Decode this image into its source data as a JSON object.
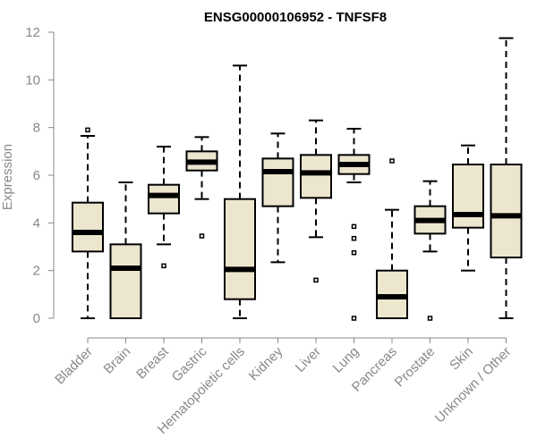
{
  "chart_data": {
    "type": "boxplot",
    "title": "ENSG00000106952 - TNFSF8",
    "xlabel": "",
    "ylabel": "Expression",
    "ylim": [
      0,
      12
    ],
    "yticks": [
      0,
      2,
      4,
      6,
      8,
      10,
      12
    ],
    "colors": {
      "box_fill": "#ede6cf",
      "stroke": "#000000",
      "axis": "#888888"
    },
    "categories": [
      "Bladder",
      "Brain",
      "Breast",
      "Gastric",
      "Hematopoietic cells",
      "Kidney",
      "Liver",
      "Lung",
      "Pancreas",
      "Prostate",
      "Skin",
      "Unknown / Other"
    ],
    "boxes": [
      {
        "category": "Bladder",
        "whisker_low": 0.0,
        "q1": 2.8,
        "median": 3.6,
        "q3": 4.85,
        "whisker_high": 7.65,
        "outliers": [
          7.9
        ]
      },
      {
        "category": "Brain",
        "whisker_low": 0.0,
        "q1": 0.0,
        "median": 2.1,
        "q3": 3.1,
        "whisker_high": 5.7,
        "outliers": []
      },
      {
        "category": "Breast",
        "whisker_low": 3.1,
        "q1": 4.4,
        "median": 5.15,
        "q3": 5.6,
        "whisker_high": 7.2,
        "outliers": [
          2.2
        ]
      },
      {
        "category": "Gastric",
        "whisker_low": 5.0,
        "q1": 6.2,
        "median": 6.55,
        "q3": 7.0,
        "whisker_high": 7.6,
        "outliers": [
          3.45
        ]
      },
      {
        "category": "Hematopoietic cells",
        "whisker_low": 0.0,
        "q1": 0.8,
        "median": 2.05,
        "q3": 5.0,
        "whisker_high": 10.6,
        "outliers": []
      },
      {
        "category": "Kidney",
        "whisker_low": 2.35,
        "q1": 4.7,
        "median": 6.15,
        "q3": 6.7,
        "whisker_high": 7.75,
        "outliers": []
      },
      {
        "category": "Liver",
        "whisker_low": 3.4,
        "q1": 5.05,
        "median": 6.1,
        "q3": 6.85,
        "whisker_high": 8.3,
        "outliers": [
          1.6
        ]
      },
      {
        "category": "Lung",
        "whisker_low": 5.7,
        "q1": 6.05,
        "median": 6.45,
        "q3": 6.85,
        "whisker_high": 7.95,
        "outliers": [
          3.85,
          3.35,
          2.75,
          0.0
        ]
      },
      {
        "category": "Pancreas",
        "whisker_low": 0.0,
        "q1": 0.0,
        "median": 0.9,
        "q3": 2.0,
        "whisker_high": 4.55,
        "outliers": [
          6.6
        ]
      },
      {
        "category": "Prostate",
        "whisker_low": 2.8,
        "q1": 3.55,
        "median": 4.1,
        "q3": 4.7,
        "whisker_high": 5.75,
        "outliers": [
          0.0
        ]
      },
      {
        "category": "Skin",
        "whisker_low": 2.0,
        "q1": 3.8,
        "median": 4.35,
        "q3": 6.45,
        "whisker_high": 7.25,
        "outliers": []
      },
      {
        "category": "Unknown / Other",
        "whisker_low": 0.0,
        "q1": 2.55,
        "median": 4.3,
        "q3": 6.45,
        "whisker_high": 11.75,
        "outliers": []
      }
    ]
  }
}
